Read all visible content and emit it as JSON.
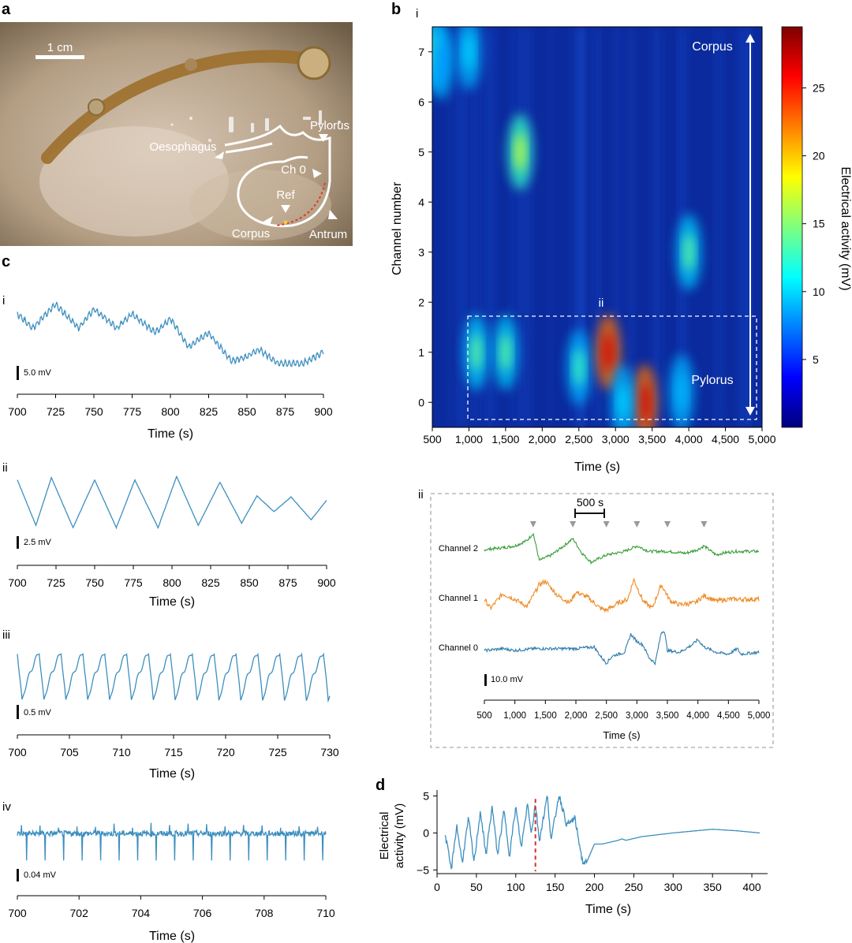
{
  "panel_letters": {
    "a": "a",
    "b": "b",
    "c": "c",
    "d": "d"
  },
  "panel_a": {
    "scale_bar": "1 cm",
    "labels": {
      "oesophagus": "Oesophagus",
      "pylorus": "Pylorus",
      "ch0": "Ch 0",
      "ref": "Ref",
      "corpus": "Corpus",
      "antrum": "Antrum"
    }
  },
  "panel_b": {
    "sub_i": "i",
    "sub_ii": "ii",
    "ii_marker": "ii",
    "ylabel": "Channel number",
    "xlabel": "Time (s)",
    "colorbar_label": "Electrical activity (mV)",
    "corpus_label": "Corpus",
    "pylorus_label": "Pylorus",
    "scale_500s": "500 s",
    "scale_10mv": "10.0 mV",
    "ii_xlabel": "Time (s)",
    "channels": [
      "Channel 2",
      "Channel 1",
      "Channel 0"
    ],
    "colors": {
      "channel2": "#3a9e3a",
      "channel1": "#ef8a25",
      "channel0": "#2e7bab"
    }
  },
  "panel_c": {
    "xlabel": "Time (s)",
    "trace_color": "#3d8fbf",
    "rows": [
      {
        "roman": "i",
        "scale": "5.0 mV"
      },
      {
        "roman": "ii",
        "scale": "2.5 mV"
      },
      {
        "roman": "iii",
        "scale": "0.5 mV"
      },
      {
        "roman": "iv",
        "scale": "0.04 mV"
      }
    ]
  },
  "panel_d": {
    "ylabel_line1": "Electrical",
    "ylabel_line2": "activity (mV)",
    "xlabel": "Time (s)"
  },
  "chart_data": [
    {
      "id": "b-i",
      "type": "heatmap",
      "xlabel": "Time (s)",
      "ylabel": "Channel number",
      "colorbar_label": "Electrical activity (mV)",
      "xlim": [
        500,
        5000
      ],
      "ylim": [
        -0.5,
        7.5
      ],
      "xticks": [
        500,
        1000,
        1500,
        2000,
        2500,
        3000,
        3500,
        4000,
        4500,
        5000
      ],
      "xtick_labels": [
        "500",
        "1,000",
        "1,500",
        "2,000",
        "2,500",
        "3,000",
        "3,500",
        "4,000",
        "4,500",
        "5,000"
      ],
      "yticks": [
        0,
        1,
        2,
        3,
        4,
        5,
        6,
        7
      ],
      "ytick_labels": [
        "0",
        "1",
        "2",
        "3",
        "4",
        "5",
        "6",
        "7"
      ],
      "colorbar_ticks": [
        "5",
        "10",
        "15",
        "20",
        "25"
      ],
      "colorbar_range": [
        0,
        29.5
      ],
      "colormap": "jet",
      "hotspots": [
        {
          "time": 510,
          "channel": 7.0,
          "value": 14
        },
        {
          "time": 620,
          "channel": 6.8,
          "value": 8
        },
        {
          "time": 1000,
          "channel": 7.0,
          "value": 10
        },
        {
          "time": 1700,
          "channel": 5.0,
          "value": 17
        },
        {
          "time": 4000,
          "channel": 3.0,
          "value": 14
        },
        {
          "time": 1100,
          "channel": 1.0,
          "value": 14
        },
        {
          "time": 1500,
          "channel": 1.0,
          "value": 14
        },
        {
          "time": 2500,
          "channel": 0.7,
          "value": 13
        },
        {
          "time": 2900,
          "channel": 1.0,
          "value": 27
        },
        {
          "time": 3400,
          "channel": 0.0,
          "value": 27
        },
        {
          "time": 3100,
          "channel": 0.0,
          "value": 10
        },
        {
          "time": 3900,
          "channel": 0.2,
          "value": 9
        }
      ]
    },
    {
      "id": "b-ii",
      "type": "line",
      "xlabel": "Time (s)",
      "xlim": [
        500,
        5000
      ],
      "xticks": [
        500,
        1000,
        1500,
        2000,
        2500,
        3000,
        3500,
        4000,
        4500,
        5000
      ],
      "xtick_labels": [
        "500",
        "1,000",
        "1,500",
        "2,000",
        "2,500",
        "3,000",
        "3,500",
        "4,000",
        "4,500",
        "5,000"
      ],
      "event_markers": [
        1300,
        1950,
        2500,
        3000,
        3500,
        4100
      ],
      "series": [
        {
          "name": "Channel 2",
          "x": [
            500,
            800,
            1000,
            1200,
            1300,
            1400,
            1600,
            1800,
            1950,
            2100,
            2250,
            2500,
            2800,
            3000,
            3200,
            3500,
            3800,
            4000,
            4100,
            4300,
            4400,
            4600,
            5000
          ],
          "y": [
            0,
            1,
            2,
            5,
            9,
            -6,
            -3,
            2,
            6,
            -2,
            -7,
            -3,
            -1,
            2,
            -1,
            -1,
            -2,
            0,
            2,
            -3,
            -2,
            -1,
            -1
          ]
        },
        {
          "name": "Channel 1",
          "x": [
            500,
            600,
            800,
            1000,
            1200,
            1400,
            1500,
            1700,
            1900,
            2000,
            2200,
            2400,
            2500,
            2700,
            2850,
            2950,
            3100,
            3250,
            3400,
            3550,
            3700,
            3950,
            4100,
            4300,
            4500,
            5000
          ],
          "y": [
            0,
            -5,
            3,
            0,
            -4,
            8,
            10,
            2,
            -2,
            4,
            1,
            -5,
            -6,
            -2,
            0,
            11,
            -1,
            -5,
            8,
            -1,
            -3,
            -2,
            2,
            -1,
            0,
            0
          ]
        },
        {
          "name": "Channel 0",
          "x": [
            500,
            800,
            1000,
            1300,
            1600,
            2000,
            2300,
            2400,
            2500,
            2600,
            2800,
            2900,
            3000,
            3100,
            3200,
            3300,
            3400,
            3450,
            3500,
            3700,
            3900,
            4000,
            4100,
            4300,
            4500,
            4650,
            4700,
            5000
          ],
          "y": [
            0,
            1,
            0,
            1,
            1,
            1,
            2,
            -3,
            -7,
            -3,
            -1,
            9,
            5,
            3,
            -4,
            -7,
            10,
            11,
            0,
            -1,
            3,
            6,
            2,
            -1,
            -2,
            1,
            -2,
            -1
          ]
        }
      ]
    },
    {
      "id": "c-i",
      "type": "line",
      "xlabel": "Time (s)",
      "xlim": [
        700,
        900
      ],
      "xticks": [
        700,
        725,
        750,
        775,
        800,
        825,
        850,
        875,
        900
      ],
      "x": [
        700,
        710,
        725,
        740,
        750,
        765,
        775,
        790,
        800,
        812,
        825,
        840,
        850,
        858,
        870,
        885,
        890,
        900
      ],
      "y": [
        6,
        3,
        8,
        3,
        7,
        3,
        6,
        2,
        5,
        -1,
        2,
        -4,
        -3,
        -1.5,
        -4.5,
        -4.5,
        -4,
        -2
      ]
    },
    {
      "id": "c-ii",
      "type": "line",
      "xlabel": "Time (s)",
      "xlim": [
        700,
        900
      ],
      "xticks": [
        700,
        725,
        750,
        775,
        800,
        825,
        850,
        875,
        900
      ],
      "x": [
        700,
        712,
        722,
        736,
        750,
        764,
        776,
        791,
        803,
        817,
        831,
        845,
        855,
        866,
        877,
        890,
        900
      ],
      "y": [
        2,
        -2,
        2.2,
        -2.2,
        2,
        -2.2,
        2,
        -2.2,
        2.3,
        -2,
        1.8,
        -1.8,
        0.6,
        -0.8,
        0.5,
        -1.5,
        0.2
      ]
    },
    {
      "id": "c-iii",
      "type": "line",
      "xlabel": "Time (s)",
      "xlim": [
        700,
        730
      ],
      "xticks": [
        700,
        705,
        710,
        715,
        720,
        725,
        730
      ],
      "period": 2.1,
      "y_range": [
        -0.55,
        0.5
      ]
    },
    {
      "id": "c-iv",
      "type": "line",
      "xlabel": "Time (s)",
      "xlim": [
        700,
        710
      ],
      "xticks": [
        700,
        702,
        704,
        706,
        708,
        710
      ],
      "baseline": 0,
      "spike_amplitude": -0.06,
      "spike_interval": 0.6
    },
    {
      "id": "d",
      "type": "line",
      "xlabel": "Time (s)",
      "ylabel": "Electrical activity (mV)",
      "xlim": [
        0,
        420
      ],
      "ylim": [
        -5.5,
        5.8
      ],
      "xticks": [
        0,
        50,
        100,
        150,
        200,
        250,
        300,
        350,
        400
      ],
      "yticks": [
        -5,
        0,
        5
      ],
      "event_time": 125,
      "x": [
        10,
        18,
        25,
        32,
        40,
        47,
        55,
        62,
        70,
        77,
        85,
        92,
        100,
        107,
        115,
        120,
        125,
        130,
        140,
        145,
        155,
        165,
        175,
        185,
        190,
        200,
        210,
        230,
        235,
        240,
        260,
        300,
        350,
        380,
        410
      ],
      "y": [
        0,
        -5,
        1,
        -4,
        2,
        -4,
        3,
        -3,
        3.5,
        -3,
        3,
        -3,
        3.5,
        -2,
        4,
        0,
        4,
        -1,
        5,
        -1,
        5.2,
        1,
        2,
        -4,
        -4,
        -1.5,
        -1.5,
        -1,
        -0.8,
        -1,
        -0.5,
        0,
        0.5,
        0.3,
        0
      ]
    }
  ]
}
